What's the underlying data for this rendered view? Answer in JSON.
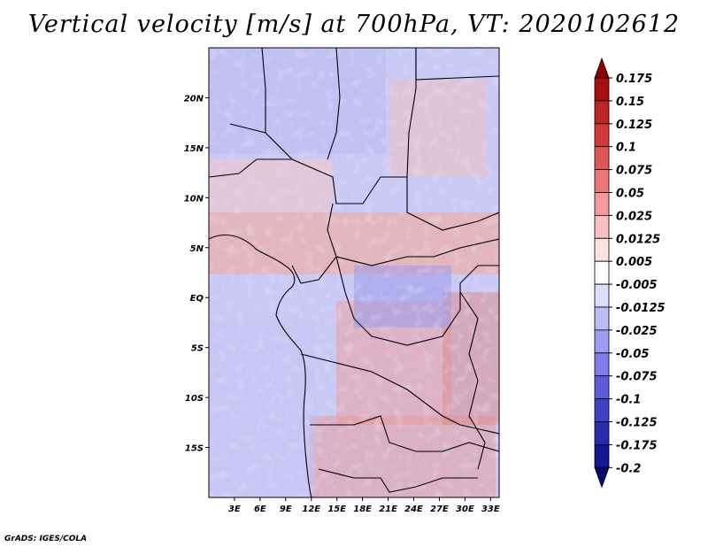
{
  "title": "Vertical velocity [m/s] at 700hPa, VT: 2020102612",
  "footer": "GrADS: IGES/COLA",
  "map": {
    "lat_labels": [
      "20N",
      "15N",
      "10N",
      "5N",
      "EQ",
      "5S",
      "10S",
      "15S"
    ],
    "lat_values": [
      20,
      15,
      10,
      5,
      0,
      -5,
      -10,
      -15
    ],
    "lon_labels": [
      "3E",
      "6E",
      "9E",
      "12E",
      "15E",
      "18E",
      "21E",
      "24E",
      "27E",
      "30E",
      "33E"
    ],
    "lon_values": [
      3,
      6,
      9,
      12,
      15,
      18,
      21,
      24,
      27,
      30,
      33
    ],
    "lat_range": [
      -20,
      25
    ],
    "lon_range": [
      0,
      34
    ]
  },
  "colorbar": {
    "labels": [
      "0.175",
      "0.15",
      "0.125",
      "0.1",
      "0.075",
      "0.05",
      "0.025",
      "0.0125",
      "0.005",
      "-0.005",
      "-0.0125",
      "-0.025",
      "-0.05",
      "-0.075",
      "-0.1",
      "-0.125",
      "-0.175",
      "-0.2"
    ],
    "colors": [
      "#8b0000",
      "#a80f12",
      "#bf2525",
      "#d23a3a",
      "#df5656",
      "#ea7878",
      "#f29c9c",
      "#f8c0c0",
      "#fde2e2",
      "#ffffff",
      "#dcdcfb",
      "#bcbcf7",
      "#9c9cf2",
      "#7c7ce9",
      "#5d5ddc",
      "#4242c6",
      "#2a2aae",
      "#15158f",
      "#08086e"
    ]
  }
}
